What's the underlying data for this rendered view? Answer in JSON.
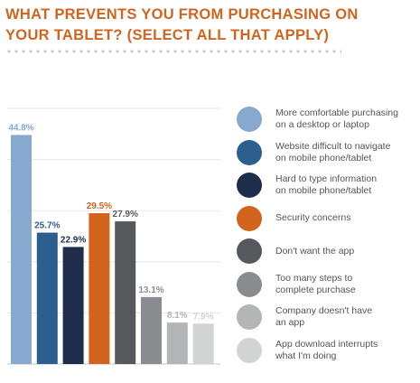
{
  "title": "WHAT PREVENTS YOU FROM PURCHASING ON YOUR TABLET? (SELECT ALL THAT APPLY)",
  "chart_data": {
    "type": "bar",
    "ylim": [
      0,
      50
    ],
    "grid": true,
    "legend_position": "right",
    "categories": [
      "More comfortable purchasing\non a desktop or laptop",
      "Website difficult to navigate\non mobile phone/tablet",
      "Hard to type information\non mobile phone/tablet",
      "Security concerns",
      "Don't want the app",
      "Too many steps to\ncomplete purchase",
      "Company doesn't have\nan app",
      "App download interrupts\nwhat I'm doing"
    ],
    "values": [
      44.8,
      25.7,
      22.9,
      29.5,
      27.9,
      13.1,
      8.1,
      7.9
    ],
    "value_labels": [
      "44.8%",
      "25.7%",
      "22.9%",
      "29.5%",
      "27.9%",
      "13.1%",
      "8.1%",
      "7.9%"
    ],
    "colors": [
      "#87a9cf",
      "#2c5f8e",
      "#1f2d4c",
      "#d2641e",
      "#55595d",
      "#8a8d8f",
      "#b3b5b7",
      "#d2d3d4"
    ]
  }
}
